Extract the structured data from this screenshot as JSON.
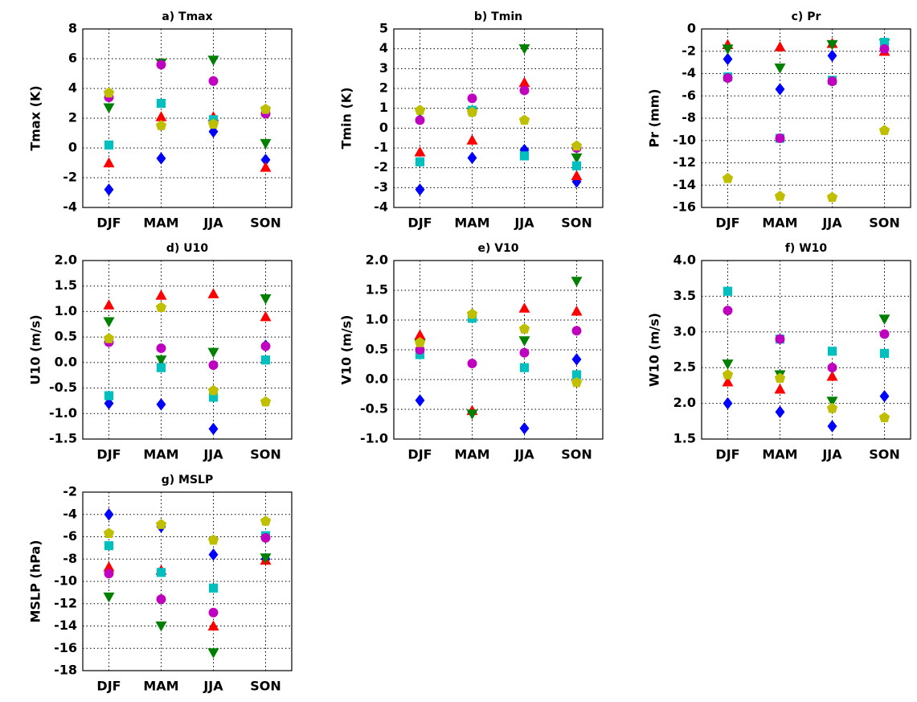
{
  "chart_data": [
    {
      "type": "scatter",
      "title": "a) Tmax",
      "ylabel": "Tmax (K)",
      "categories": [
        "DJF",
        "MAM",
        "JJA",
        "SON"
      ],
      "ylim": [
        -4,
        8
      ],
      "yticks": [
        -4,
        -2,
        0,
        2,
        4,
        6,
        8
      ],
      "grid": true,
      "series": [
        {
          "color": "#0000ff",
          "marker": "D",
          "values": [
            -2.8,
            -0.7,
            1.1,
            -0.8
          ]
        },
        {
          "color": "#ff0000",
          "marker": "^",
          "values": [
            -1.0,
            2.1,
            2.1,
            -1.3
          ]
        },
        {
          "color": "#008000",
          "marker": "v",
          "values": [
            2.7,
            5.7,
            5.9,
            0.3
          ]
        },
        {
          "color": "#00bfbf",
          "marker": "s",
          "values": [
            0.2,
            3.0,
            1.9,
            2.5
          ]
        },
        {
          "color": "#bf00bf",
          "marker": "o",
          "values": [
            3.4,
            5.6,
            4.5,
            2.3
          ]
        },
        {
          "color": "#bfbf00",
          "marker": "p",
          "values": [
            3.7,
            1.5,
            1.6,
            2.6
          ]
        }
      ]
    },
    {
      "type": "scatter",
      "title": "b) Tmin",
      "ylabel": "Tmin (K)",
      "categories": [
        "DJF",
        "MAM",
        "JJA",
        "SON"
      ],
      "ylim": [
        -4,
        5
      ],
      "yticks": [
        -4,
        -3,
        -2,
        -1,
        0,
        1,
        2,
        3,
        4,
        5
      ],
      "grid": true,
      "series": [
        {
          "color": "#0000ff",
          "marker": "D",
          "values": [
            -3.1,
            -1.5,
            -1.1,
            -2.7
          ]
        },
        {
          "color": "#ff0000",
          "marker": "^",
          "values": [
            -1.2,
            -0.6,
            2.3,
            -2.4
          ]
        },
        {
          "color": "#008000",
          "marker": "v",
          "values": [
            0.8,
            0.8,
            4.0,
            -1.5
          ]
        },
        {
          "color": "#00bfbf",
          "marker": "s",
          "values": [
            -1.7,
            0.9,
            -1.4,
            -1.9
          ]
        },
        {
          "color": "#bf00bf",
          "marker": "o",
          "values": [
            0.4,
            1.5,
            1.9,
            -1.0
          ]
        },
        {
          "color": "#bfbf00",
          "marker": "p",
          "values": [
            0.9,
            0.8,
            0.4,
            -0.9
          ]
        }
      ]
    },
    {
      "type": "scatter",
      "title": "c) Pr",
      "ylabel": "Pr (mm)",
      "categories": [
        "DJF",
        "MAM",
        "JJA",
        "SON"
      ],
      "ylim": [
        -16,
        0
      ],
      "yticks": [
        -16,
        -14,
        -12,
        -10,
        -8,
        -6,
        -4,
        -2,
        0
      ],
      "grid": true,
      "series": [
        {
          "color": "#0000ff",
          "marker": "D",
          "values": [
            -2.7,
            -5.4,
            -2.4,
            -1.3
          ]
        },
        {
          "color": "#ff0000",
          "marker": "^",
          "values": [
            -1.4,
            -1.6,
            -1.3,
            -2.0
          ]
        },
        {
          "color": "#008000",
          "marker": "v",
          "values": [
            -1.8,
            -3.5,
            -1.4,
            -1.3
          ]
        },
        {
          "color": "#00bfbf",
          "marker": "s",
          "values": [
            -4.3,
            -9.8,
            -4.6,
            -1.2
          ]
        },
        {
          "color": "#bf00bf",
          "marker": "o",
          "values": [
            -4.4,
            -9.8,
            -4.7,
            -1.8
          ]
        },
        {
          "color": "#bfbf00",
          "marker": "p",
          "values": [
            -13.4,
            -15.0,
            -15.1,
            -9.1
          ]
        }
      ]
    },
    {
      "type": "scatter",
      "title": "d) U10",
      "ylabel": "U10 (m/s)",
      "categories": [
        "DJF",
        "MAM",
        "JJA",
        "SON"
      ],
      "ylim": [
        -1.5,
        2
      ],
      "yticks": [
        -1.5,
        {
          "value": -1,
          "label": "-1.0"
        },
        -0.5,
        {
          "value": 0,
          "label": "0.0"
        },
        0.5,
        {
          "value": 1,
          "label": "1.0"
        },
        1.5,
        {
          "value": 2,
          "label": "2.0"
        }
      ],
      "grid": true,
      "series": [
        {
          "color": "#0000ff",
          "marker": "D",
          "values": [
            -0.8,
            -0.82,
            -1.3,
            0.33
          ]
        },
        {
          "color": "#ff0000",
          "marker": "^",
          "values": [
            1.13,
            1.32,
            1.35,
            0.9
          ]
        },
        {
          "color": "#008000",
          "marker": "v",
          "values": [
            0.8,
            0.05,
            0.2,
            1.25
          ]
        },
        {
          "color": "#00bfbf",
          "marker": "s",
          "values": [
            -0.65,
            -0.1,
            -0.68,
            0.05
          ]
        },
        {
          "color": "#bf00bf",
          "marker": "o",
          "values": [
            0.4,
            0.28,
            -0.05,
            0.32
          ]
        },
        {
          "color": "#bfbf00",
          "marker": "p",
          "values": [
            0.47,
            1.08,
            -0.55,
            -0.77
          ]
        }
      ]
    },
    {
      "type": "scatter",
      "title": "e) V10",
      "ylabel": "V10 (m/s)",
      "categories": [
        "DJF",
        "MAM",
        "JJA",
        "SON"
      ],
      "ylim": [
        -1,
        2
      ],
      "yticks": [
        {
          "value": -1,
          "label": "-1.0"
        },
        -0.5,
        {
          "value": 0,
          "label": "0.0"
        },
        0.5,
        {
          "value": 1,
          "label": "1.0"
        },
        1.5,
        {
          "value": 2,
          "label": "2.0"
        }
      ],
      "grid": true,
      "series": [
        {
          "color": "#0000ff",
          "marker": "D",
          "values": [
            -0.35,
            -0.55,
            -0.82,
            0.34
          ]
        },
        {
          "color": "#ff0000",
          "marker": "^",
          "values": [
            0.75,
            -0.52,
            1.2,
            1.15
          ]
        },
        {
          "color": "#008000",
          "marker": "v",
          "values": [
            0.6,
            -0.58,
            0.65,
            1.65
          ]
        },
        {
          "color": "#00bfbf",
          "marker": "s",
          "values": [
            0.42,
            1.03,
            0.2,
            0.08
          ]
        },
        {
          "color": "#bf00bf",
          "marker": "o",
          "values": [
            0.5,
            0.27,
            0.45,
            0.82
          ]
        },
        {
          "color": "#bfbf00",
          "marker": "p",
          "values": [
            0.62,
            1.1,
            0.85,
            -0.05
          ]
        }
      ]
    },
    {
      "type": "scatter",
      "title": "f) W10",
      "ylabel": "W10 (m/s)",
      "categories": [
        "DJF",
        "MAM",
        "JJA",
        "SON"
      ],
      "ylim": [
        1.5,
        4
      ],
      "yticks": [
        1.5,
        {
          "value": 2,
          "label": "2.0"
        },
        2.5,
        {
          "value": 3,
          "label": "3.0"
        },
        3.5,
        {
          "value": 4,
          "label": "4.0"
        }
      ],
      "grid": true,
      "series": [
        {
          "color": "#0000ff",
          "marker": "D",
          "values": [
            2.0,
            1.88,
            1.68,
            2.1
          ]
        },
        {
          "color": "#ff0000",
          "marker": "^",
          "values": [
            2.3,
            2.2,
            2.38,
            null
          ]
        },
        {
          "color": "#008000",
          "marker": "v",
          "values": [
            2.55,
            2.4,
            2.03,
            3.18
          ]
        },
        {
          "color": "#00bfbf",
          "marker": "s",
          "values": [
            3.57,
            2.9,
            2.73,
            2.7
          ]
        },
        {
          "color": "#bf00bf",
          "marker": "o",
          "values": [
            3.3,
            2.9,
            2.5,
            2.97
          ]
        },
        {
          "color": "#bfbf00",
          "marker": "p",
          "values": [
            2.4,
            2.35,
            1.93,
            1.8
          ]
        }
      ]
    },
    {
      "type": "scatter",
      "title": "g) MSLP",
      "ylabel": "MSLP (hPa)",
      "categories": [
        "DJF",
        "MAM",
        "JJA",
        "SON"
      ],
      "ylim": [
        -18,
        -2
      ],
      "yticks": [
        -18,
        -16,
        -14,
        -12,
        -10,
        -8,
        -6,
        -4,
        -2
      ],
      "grid": true,
      "series": [
        {
          "color": "#0000ff",
          "marker": "D",
          "values": [
            -4.0,
            -5.1,
            -7.6,
            -8.0
          ]
        },
        {
          "color": "#ff0000",
          "marker": "^",
          "values": [
            -8.7,
            -9.0,
            -14.0,
            -8.1
          ]
        },
        {
          "color": "#008000",
          "marker": "v",
          "values": [
            -11.4,
            -14.0,
            -16.4,
            -7.9
          ]
        },
        {
          "color": "#00bfbf",
          "marker": "s",
          "values": [
            -6.8,
            -9.2,
            -10.6,
            -5.9
          ]
        },
        {
          "color": "#bf00bf",
          "marker": "o",
          "values": [
            -9.3,
            -11.6,
            -12.8,
            -6.1
          ]
        },
        {
          "color": "#bfbf00",
          "marker": "p",
          "values": [
            -5.7,
            -4.9,
            -6.3,
            -4.6
          ]
        }
      ]
    }
  ]
}
